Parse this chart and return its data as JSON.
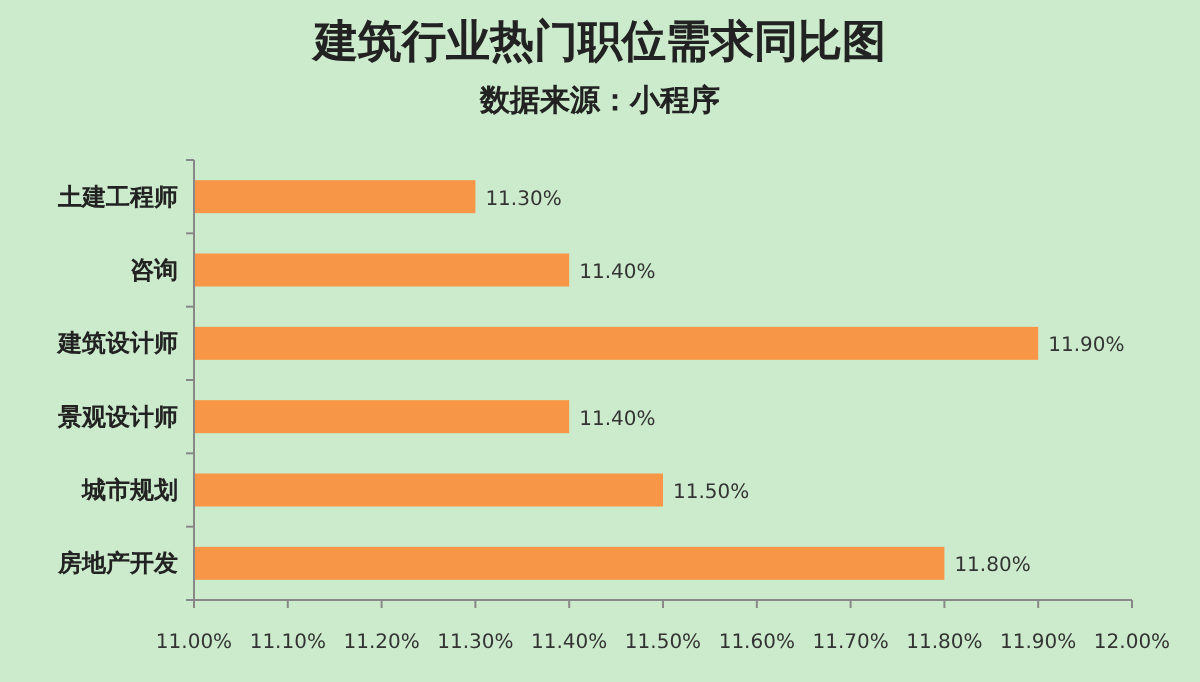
{
  "chart_data": {
    "type": "bar",
    "orientation": "horizontal",
    "title": "建筑行业热门职位需求同比图",
    "subtitle": "数据来源：小程序",
    "categories": [
      "土建工程师",
      "咨询",
      "建筑设计师",
      "景观设计师",
      "城市规划",
      "房地产开发"
    ],
    "values": [
      11.3,
      11.4,
      11.9,
      11.4,
      11.5,
      11.8
    ],
    "value_labels": [
      "11.30%",
      "11.40%",
      "11.90%",
      "11.40%",
      "11.50%",
      "11.80%"
    ],
    "color": "#f79646",
    "xlim": [
      11.0,
      12.0
    ],
    "xticks": [
      {
        "value": 11.0,
        "label": "11.00%"
      },
      {
        "value": 11.1,
        "label": "11.10%"
      },
      {
        "value": 11.2,
        "label": "11.20%"
      },
      {
        "value": 11.3,
        "label": "11.30%"
      },
      {
        "value": 11.4,
        "label": "11.40%"
      },
      {
        "value": 11.5,
        "label": "11.50%"
      },
      {
        "value": 11.6,
        "label": "11.60%"
      },
      {
        "value": 11.7,
        "label": "11.70%"
      },
      {
        "value": 11.8,
        "label": "11.80%"
      },
      {
        "value": 11.9,
        "label": "11.90%"
      },
      {
        "value": 12.0,
        "label": "12.00%"
      }
    ]
  }
}
